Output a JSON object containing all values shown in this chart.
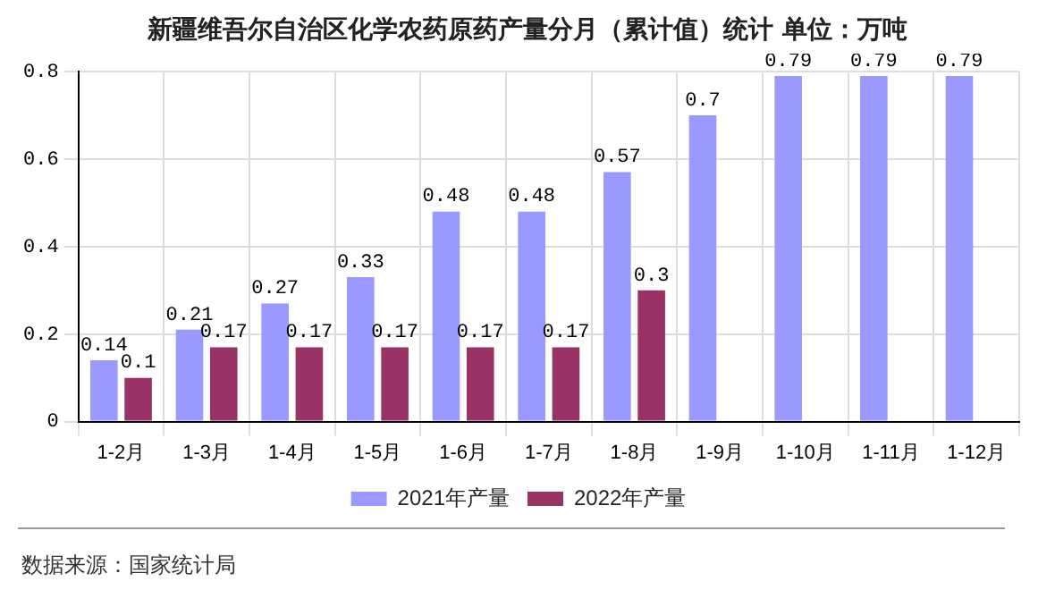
{
  "chart_data": {
    "type": "bar",
    "title": "新疆维吾尔自治区化学农药原药产量分月（累计值）统计  单位：万吨",
    "categories": [
      "1-2月",
      "1-3月",
      "1-4月",
      "1-5月",
      "1-6月",
      "1-7月",
      "1-8月",
      "1-9月",
      "1-10月",
      "1-11月",
      "1-12月"
    ],
    "series": [
      {
        "name": "2021年产量",
        "color": "#9999ff",
        "values": [
          0.14,
          0.21,
          0.27,
          0.33,
          0.48,
          0.48,
          0.57,
          0.7,
          0.79,
          0.79,
          0.79
        ]
      },
      {
        "name": "2022年产量",
        "color": "#993366",
        "values": [
          0.1,
          0.17,
          0.17,
          0.17,
          0.17,
          0.17,
          0.3,
          null,
          null,
          null,
          null
        ]
      }
    ],
    "ylim": [
      0,
      0.8
    ],
    "yticks": [
      0,
      0.2,
      0.4,
      0.6,
      0.8
    ],
    "grid": true,
    "legend": "bottom",
    "data_labels": true,
    "annotations": [
      "数据来源：国家统计局"
    ]
  }
}
